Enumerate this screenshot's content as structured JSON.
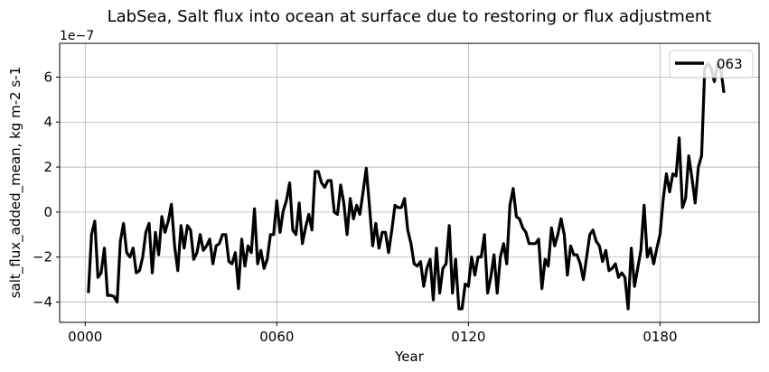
{
  "chart_data": {
    "type": "line",
    "title": "LabSea, Salt flux into ocean at surface due to restoring or flux adjustment",
    "xlabel": "Year",
    "ylabel": "salt_flux_added_mean, kg m-2 s-1",
    "y_offset_label": "1e−7",
    "y_scale_exponent": -7,
    "xlim": [
      -8,
      211
    ],
    "ylim": [
      -4.9,
      7.5
    ],
    "x_ticks": [
      0,
      60,
      120,
      180
    ],
    "x_tick_labels": [
      "0000",
      "0060",
      "0120",
      "0180"
    ],
    "y_ticks": [
      -4,
      -2,
      0,
      2,
      4,
      6
    ],
    "y_tick_labels": [
      "−4",
      "−2",
      "0",
      "2",
      "4",
      "6"
    ],
    "grid": true,
    "legend_position": "top-right",
    "line_color": "#000000",
    "series": [
      {
        "name": "063",
        "x": [
          1,
          2,
          3,
          4,
          5,
          6,
          7,
          8,
          9,
          10,
          11,
          12,
          13,
          14,
          15,
          16,
          17,
          18,
          19,
          20,
          21,
          22,
          23,
          24,
          25,
          26,
          27,
          28,
          29,
          30,
          31,
          32,
          33,
          34,
          35,
          36,
          37,
          38,
          39,
          40,
          41,
          42,
          43,
          44,
          45,
          46,
          47,
          48,
          49,
          50,
          51,
          52,
          53,
          54,
          55,
          56,
          57,
          58,
          59,
          60,
          61,
          62,
          63,
          64,
          65,
          66,
          67,
          68,
          69,
          70,
          71,
          72,
          73,
          74,
          75,
          76,
          77,
          78,
          79,
          80,
          81,
          82,
          83,
          84,
          85,
          86,
          87,
          88,
          89,
          90,
          91,
          92,
          93,
          94,
          95,
          96,
          97,
          98,
          99,
          100,
          101,
          102,
          103,
          104,
          105,
          106,
          107,
          108,
          109,
          110,
          111,
          112,
          113,
          114,
          115,
          116,
          117,
          118,
          119,
          120,
          121,
          122,
          123,
          124,
          125,
          126,
          127,
          128,
          129,
          130,
          131,
          132,
          133,
          134,
          135,
          136,
          137,
          138,
          139,
          140,
          141,
          142,
          143,
          144,
          145,
          146,
          147,
          148,
          149,
          150,
          151,
          152,
          153,
          154,
          155,
          156,
          157,
          158,
          159,
          160,
          161,
          162,
          163,
          164,
          165,
          166,
          167,
          168,
          169,
          170,
          171,
          172,
          173,
          174,
          175,
          176,
          177,
          178,
          179,
          180,
          181,
          182,
          183,
          184,
          185,
          186,
          187,
          188,
          189,
          190,
          191,
          192,
          193,
          194,
          195,
          196,
          197,
          198,
          199,
          200
        ],
        "y": [
          -3.6,
          -1.0,
          -0.4,
          -2.9,
          -2.7,
          -1.6,
          -3.7,
          -3.7,
          -3.75,
          -4.0,
          -1.3,
          -0.5,
          -1.8,
          -2.0,
          -1.6,
          -2.7,
          -2.6,
          -2.0,
          -0.9,
          -0.5,
          -2.7,
          -0.9,
          -1.9,
          -0.2,
          -0.9,
          -0.4,
          0.35,
          -1.5,
          -2.6,
          -0.6,
          -1.6,
          -0.6,
          -0.8,
          -2.1,
          -1.8,
          -1.0,
          -1.7,
          -1.5,
          -1.2,
          -2.3,
          -1.5,
          -1.4,
          -1.0,
          -1.0,
          -2.2,
          -2.3,
          -1.8,
          -3.4,
          -1.2,
          -2.4,
          -1.5,
          -1.8,
          0.15,
          -2.3,
          -1.7,
          -2.5,
          -2.1,
          -1.0,
          -1.0,
          0.5,
          -0.9,
          0.05,
          0.5,
          1.3,
          -0.8,
          -1.0,
          0.4,
          -1.4,
          -0.7,
          -0.1,
          -0.8,
          1.8,
          1.8,
          1.3,
          1.1,
          1.4,
          1.4,
          0.0,
          -0.1,
          1.2,
          0.4,
          -1.0,
          0.6,
          -0.3,
          0.3,
          -0.1,
          0.9,
          1.95,
          0.3,
          -1.5,
          -0.5,
          -1.6,
          -0.9,
          -0.9,
          -1.8,
          -0.8,
          0.3,
          0.2,
          0.2,
          0.6,
          -0.8,
          -1.4,
          -2.3,
          -2.4,
          -2.2,
          -3.3,
          -2.5,
          -2.1,
          -3.9,
          -1.6,
          -3.6,
          -2.5,
          -2.3,
          -0.6,
          -3.6,
          -2.1,
          -4.3,
          -4.3,
          -3.2,
          -3.3,
          -2.0,
          -2.8,
          -2.0,
          -2.0,
          -1.0,
          -3.6,
          -2.9,
          -1.9,
          -3.6,
          -2.0,
          -1.4,
          -2.3,
          0.3,
          1.05,
          -0.2,
          -0.3,
          -0.7,
          -0.9,
          -1.4,
          -1.4,
          -1.4,
          -1.2,
          -3.4,
          -2.1,
          -2.4,
          -0.7,
          -1.5,
          -1.0,
          -0.3,
          -1.0,
          -2.8,
          -1.5,
          -1.9,
          -1.9,
          -2.3,
          -3.0,
          -2.0,
          -1.0,
          -0.8,
          -1.3,
          -1.5,
          -2.2,
          -1.7,
          -2.6,
          -2.5,
          -2.3,
          -2.9,
          -2.7,
          -2.9,
          -4.3,
          -1.6,
          -3.3,
          -2.5,
          -1.7,
          0.3,
          -2.0,
          -1.6,
          -2.3,
          -1.6,
          -1.0,
          0.6,
          1.7,
          0.9,
          1.7,
          1.6,
          3.3,
          0.2,
          0.6,
          2.5,
          1.5,
          0.4,
          2.0,
          2.5,
          6.4,
          6.6,
          6.4,
          5.8,
          6.6,
          6.4,
          5.3
        ]
      }
    ]
  }
}
